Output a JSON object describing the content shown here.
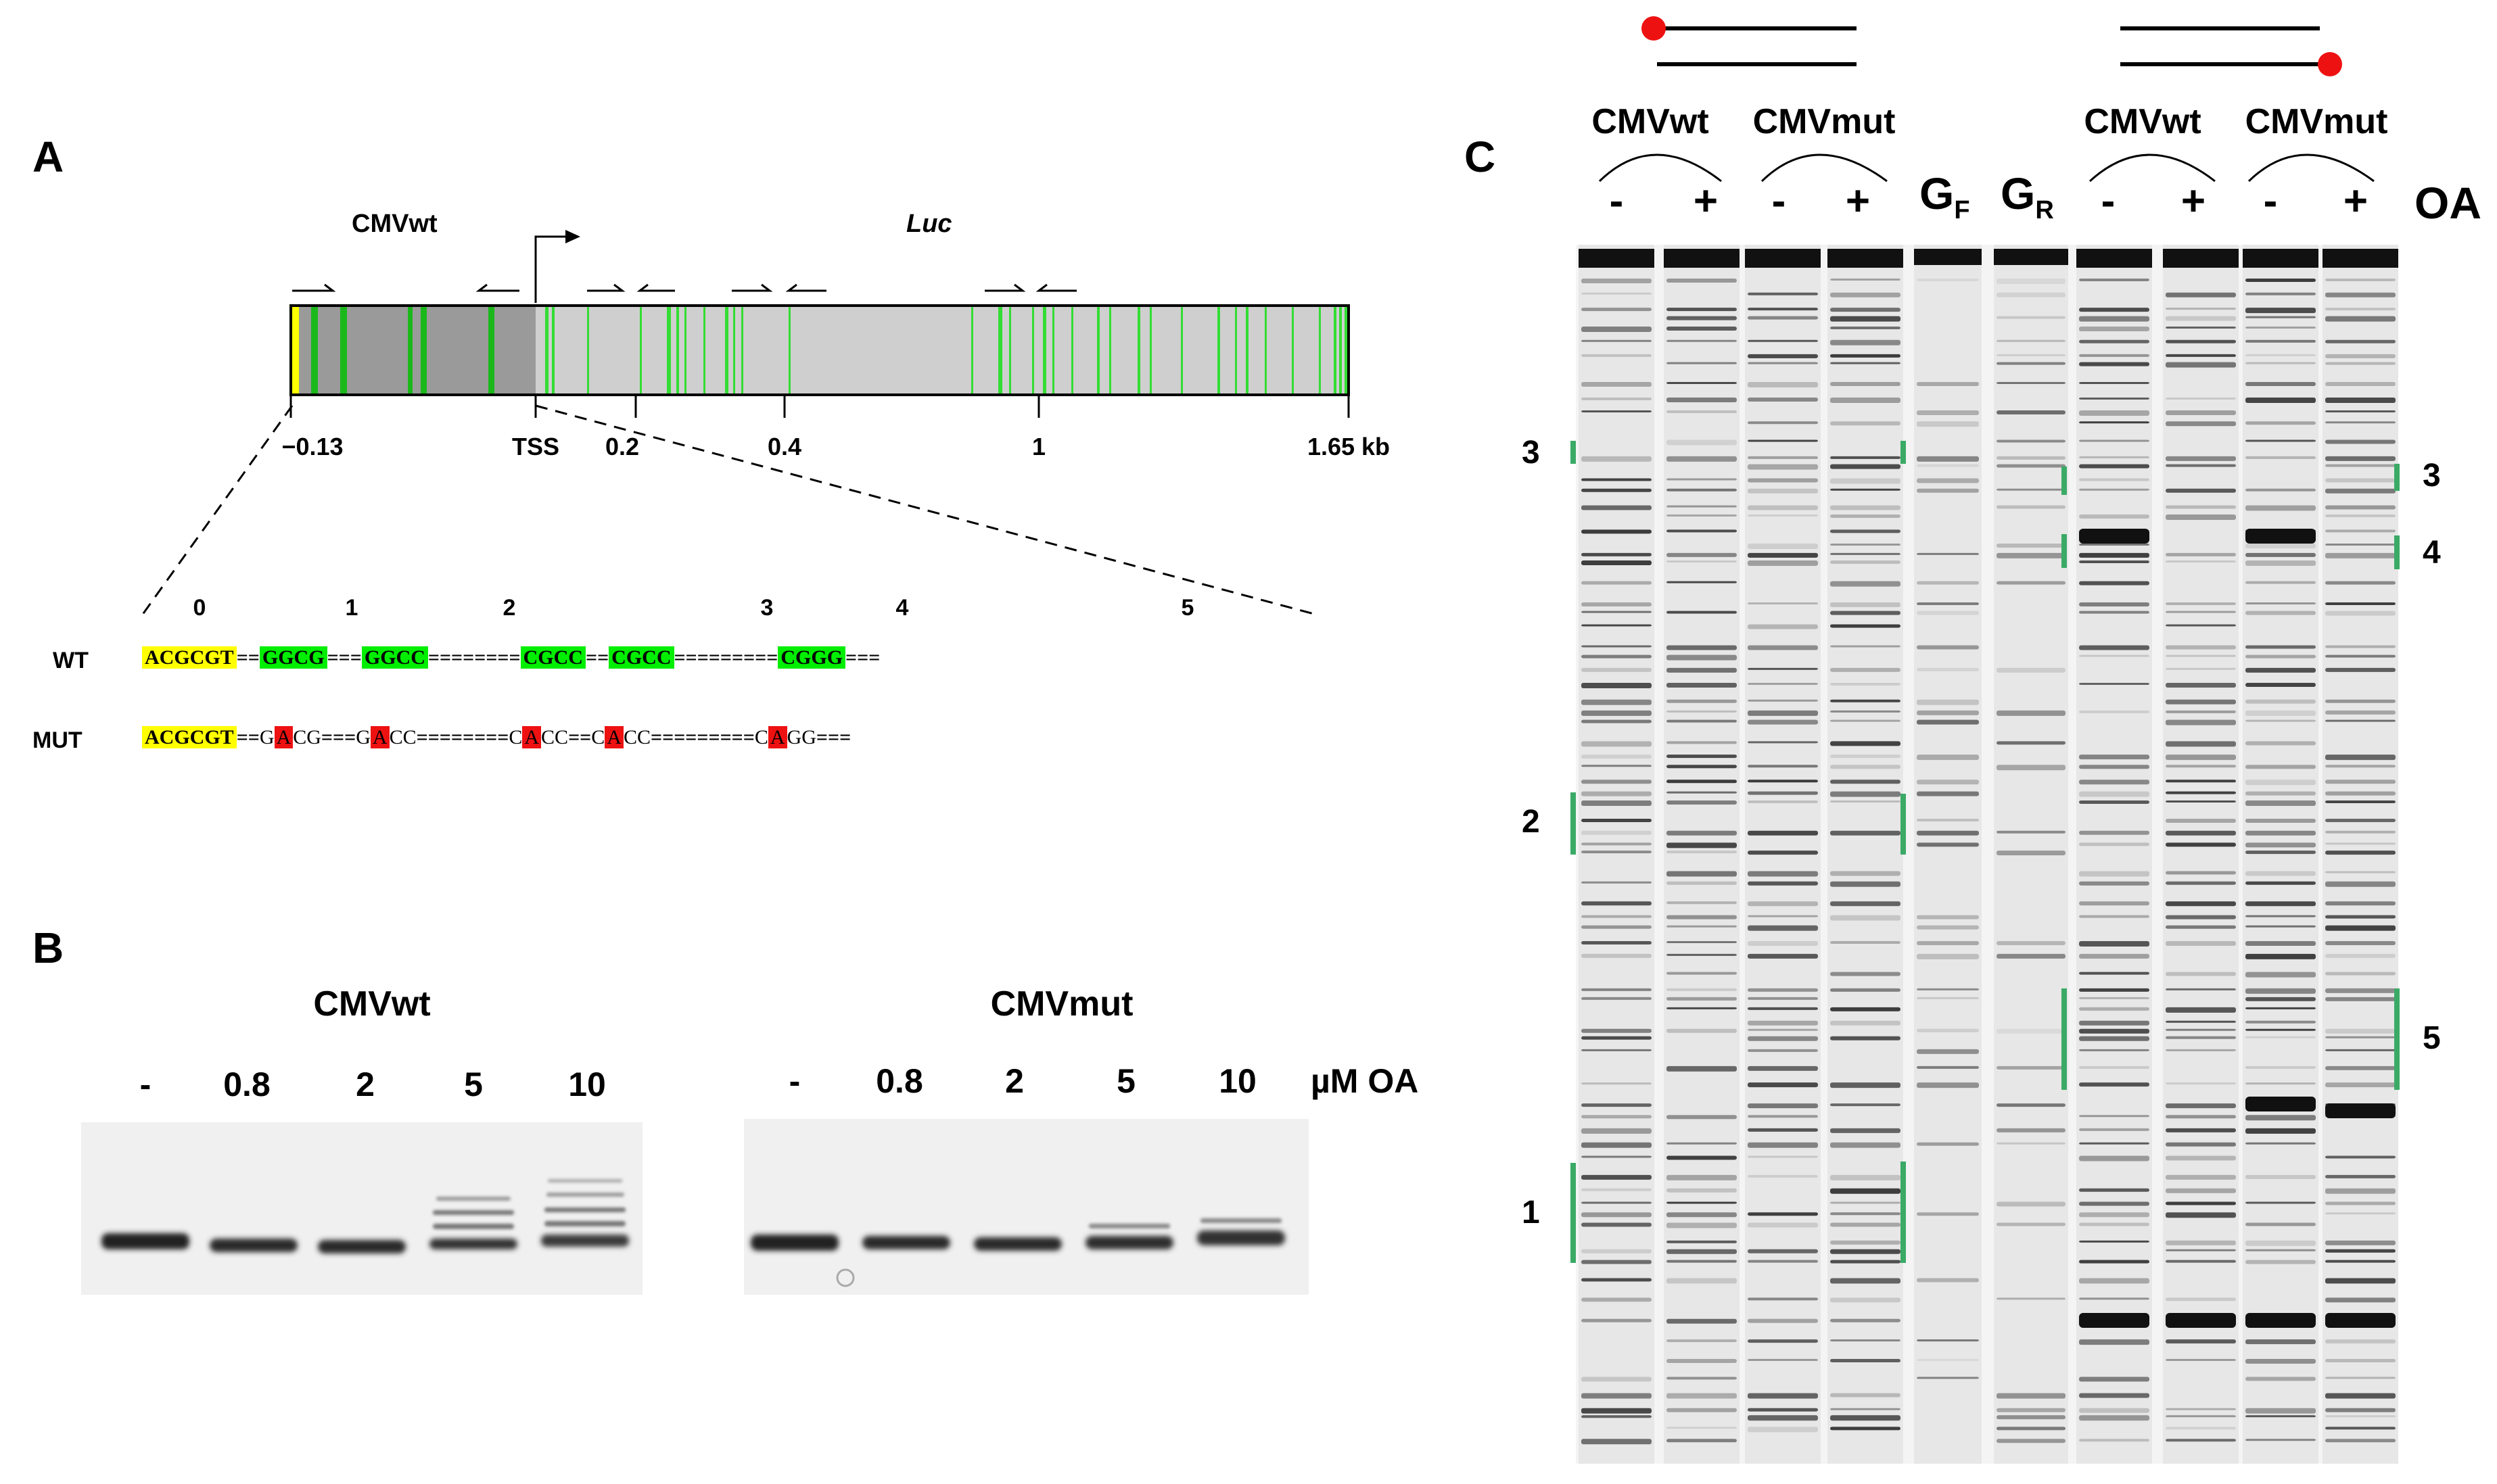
{
  "panels": {
    "a": "A",
    "b": "B",
    "c": "C"
  },
  "panel_a": {
    "promoter_label": "CMVwt",
    "gene_label": "Luc",
    "axis_ticks": [
      "−0.13",
      "TSS",
      "0.2",
      "0.4",
      "1",
      "1.65 kb"
    ],
    "site_numbers": [
      "0",
      "1",
      "2",
      "3",
      "4",
      "5"
    ],
    "rows": {
      "wt": {
        "label": "WT",
        "parts": [
          "ACGCGT",
          "==",
          "GGCG",
          "===",
          "GGCC",
          "========",
          "CGCC",
          "==",
          "CGCC",
          "=========",
          "CGGG",
          "==="
        ]
      },
      "mut": {
        "label": "MUT",
        "parts": [
          "ACGCGT",
          "==",
          "G",
          "A",
          "CG",
          "===",
          "G",
          "A",
          "CC",
          "========",
          "C",
          "A",
          "CC",
          "==",
          "C",
          "A",
          "CC",
          "=========",
          "C",
          "A",
          "GG",
          "==="
        ]
      }
    },
    "colors": {
      "yellow": "#ffff00",
      "green": "#00dd00",
      "red": "#ee1111",
      "bar_dark": "#9a9a9a",
      "bar_light": "#cfcfcf"
    }
  },
  "panel_b": {
    "titles": [
      "CMVwt",
      "CMVmut"
    ],
    "lanes_left": [
      "-",
      "0.8",
      "2",
      "5",
      "10"
    ],
    "lanes_right": [
      "-",
      "0.8",
      "2",
      "5",
      "10"
    ],
    "unit": "µM OA"
  },
  "panel_c": {
    "group_titles": [
      "CMVwt",
      "CMVmut",
      "CMVwt",
      "CMVmut"
    ],
    "lane_signs": [
      "-",
      "+",
      "-",
      "+",
      "-",
      "+",
      "-",
      "+"
    ],
    "g_f": {
      "base": "G",
      "sub": "F"
    },
    "g_r": {
      "base": "G",
      "sub": "R"
    },
    "oa": "OA",
    "left_markers": [
      "3",
      "2",
      "1"
    ],
    "right_markers": [
      "3",
      "4",
      "5"
    ],
    "marker_color": "#3aaa66",
    "probe_dot_color": "#ee1111"
  }
}
